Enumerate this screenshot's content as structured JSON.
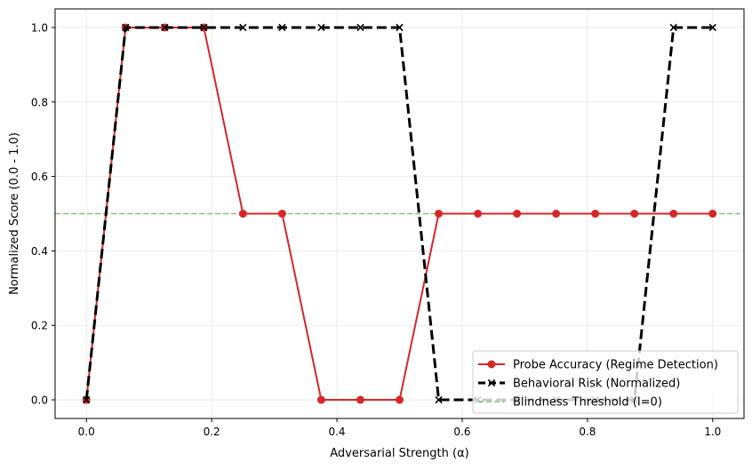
{
  "chart_data": {
    "type": "line",
    "title": "",
    "xlabel": "Adversarial Strength (α)",
    "ylabel": "Normalized Score (0.0 - 1.0)",
    "xlim": [
      -0.05,
      1.05
    ],
    "ylim": [
      -0.05,
      1.05
    ],
    "xticks": [
      "0.0",
      "0.2",
      "0.4",
      "0.6",
      "0.8",
      "1.0"
    ],
    "yticks": [
      "0.0",
      "0.2",
      "0.4",
      "0.6",
      "0.8",
      "1.0"
    ],
    "grid": true,
    "legend_position": "bottom-right",
    "x": [
      0.0,
      0.0625,
      0.125,
      0.1875,
      0.25,
      0.3125,
      0.375,
      0.4375,
      0.5,
      0.5625,
      0.625,
      0.6875,
      0.75,
      0.8125,
      0.875,
      0.9375,
      1.0
    ],
    "series": [
      {
        "name": "Probe Accuracy (Regime Detection)",
        "color": "#d62728",
        "style": "solid",
        "marker": "circle",
        "values": [
          0.0,
          1.0,
          1.0,
          1.0,
          0.5,
          0.5,
          0.0,
          0.0,
          0.0,
          0.5,
          0.5,
          0.5,
          0.5,
          0.5,
          0.5,
          0.5,
          0.5
        ]
      },
      {
        "name": "Behavioral Risk (Normalized)",
        "color": "#000000",
        "style": "dashed",
        "marker": "x",
        "values": [
          0.0,
          1.0,
          1.0,
          1.0,
          1.0,
          1.0,
          1.0,
          1.0,
          1.0,
          0.0,
          0.0,
          0.0,
          0.0,
          0.0,
          0.0,
          1.0,
          1.0
        ]
      }
    ],
    "reference_lines": [
      {
        "name": "Blindness Threshold (I=0)",
        "y": 0.5,
        "color": "#2ca02c",
        "style": "dashed"
      }
    ]
  }
}
